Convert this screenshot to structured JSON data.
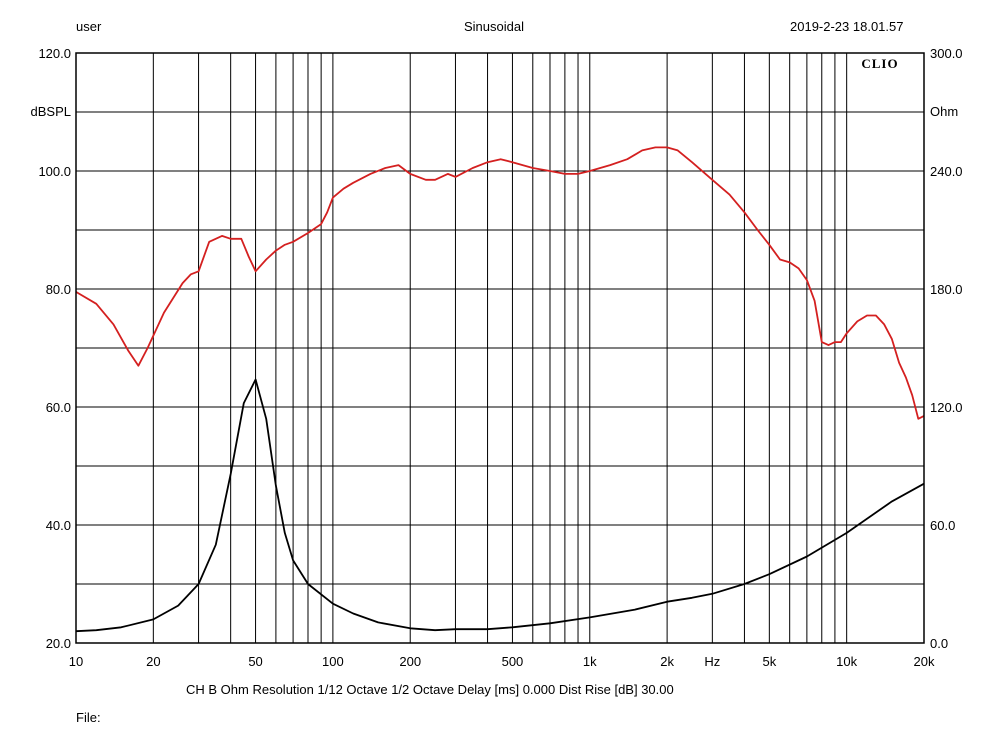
{
  "header": {
    "user": "user",
    "mode": "Sinusoidal",
    "timestamp": "2019-2-23 18.01.57"
  },
  "footer": {
    "settings": "CH B   Ohm   Resolution 1/12 Octave   1/2 Octave   Delay [ms] 0.000   Dist Rise [dB] 30.00",
    "file_label": "File:"
  },
  "chart_data": {
    "type": "line",
    "logo": "CLIO",
    "x_scale": "log",
    "xlim": [
      10,
      20000
    ],
    "x_ticks": [
      {
        "v": 10,
        "label": "10"
      },
      {
        "v": 20,
        "label": "20"
      },
      {
        "v": 50,
        "label": "50"
      },
      {
        "v": 100,
        "label": "100"
      },
      {
        "v": 200,
        "label": "200"
      },
      {
        "v": 500,
        "label": "500"
      },
      {
        "v": 1000,
        "label": "1k"
      },
      {
        "v": 2000,
        "label": "2k"
      },
      {
        "v": 5000,
        "label": "5k"
      },
      {
        "v": 10000,
        "label": "10k"
      },
      {
        "v": 20000,
        "label": "20k"
      }
    ],
    "x_unit": "Hz",
    "x_unit_at": 3000,
    "y_left": {
      "label": "dBSPL",
      "ylim": [
        20,
        120
      ],
      "ticks": [
        {
          "v": 20,
          "label": "20.0"
        },
        {
          "v": 40,
          "label": "40.0"
        },
        {
          "v": 60,
          "label": "60.0"
        },
        {
          "v": 80,
          "label": "80.0"
        },
        {
          "v": 100,
          "label": "100.0"
        },
        {
          "v": 120,
          "label": "120.0"
        }
      ]
    },
    "y_right": {
      "label": "Ohm",
      "ylim": [
        0,
        300
      ],
      "ticks": [
        {
          "v": 0,
          "label": "0.0"
        },
        {
          "v": 60,
          "label": "60.0"
        },
        {
          "v": 120,
          "label": "120.0"
        },
        {
          "v": 180,
          "label": "180.0"
        },
        {
          "v": 240,
          "label": "240.0"
        },
        {
          "v": 300,
          "label": "300.0"
        }
      ]
    },
    "grid": true,
    "series": [
      {
        "color": "#d42020",
        "axis": "left",
        "x": [
          10,
          12,
          14,
          16,
          17.5,
          19,
          22,
          26,
          28,
          30,
          33,
          37,
          40,
          44,
          47,
          50,
          55,
          60,
          65,
          70,
          80,
          90,
          95,
          100,
          110,
          120,
          140,
          160,
          180,
          200,
          230,
          250,
          280,
          300,
          350,
          400,
          450,
          500,
          600,
          700,
          800,
          900,
          1000,
          1200,
          1400,
          1600,
          1800,
          2000,
          2200,
          2500,
          3000,
          3500,
          4000,
          4500,
          5000,
          5500,
          6000,
          6500,
          7000,
          7500,
          8000,
          8500,
          9000,
          9500,
          10000,
          11000,
          12000,
          13000,
          14000,
          15000,
          16000,
          17000,
          18000,
          19000,
          20000
        ],
        "y": [
          79.5,
          77.5,
          74,
          69.5,
          67,
          70,
          76,
          81,
          82.5,
          83,
          88,
          89,
          88.5,
          88.5,
          85.5,
          83,
          85,
          86.5,
          87.5,
          88,
          89.5,
          91,
          93,
          95.5,
          97,
          98,
          99.5,
          100.5,
          101,
          99.5,
          98.5,
          98.5,
          99.5,
          99,
          100.5,
          101.5,
          102,
          101.5,
          100.5,
          100,
          99.5,
          99.5,
          100,
          101,
          102,
          103.5,
          104,
          104,
          103.5,
          101.5,
          98.5,
          96,
          93,
          90,
          87.5,
          85,
          84.5,
          83.5,
          81.5,
          78,
          71,
          70.5,
          71,
          71,
          72.5,
          74.5,
          75.5,
          75.5,
          74,
          71.5,
          67.5,
          65,
          62,
          58,
          58.5
        ]
      },
      {
        "color": "#000000",
        "axis": "right",
        "x": [
          10,
          12,
          15,
          20,
          25,
          30,
          35,
          40,
          45,
          50,
          55,
          60,
          65,
          70,
          80,
          100,
          120,
          150,
          200,
          250,
          300,
          400,
          500,
          700,
          1000,
          1500,
          2000,
          2500,
          3000,
          4000,
          5000,
          7000,
          10000,
          15000,
          20000
        ],
        "y": [
          6,
          6.5,
          8,
          12,
          19,
          30,
          50,
          86,
          122,
          134,
          114,
          80,
          56,
          42,
          30,
          20,
          15,
          10.5,
          7.5,
          6.5,
          7,
          7,
          8,
          10,
          13,
          17,
          21,
          23,
          25,
          30,
          35,
          44,
          56,
          72,
          81
        ]
      }
    ]
  }
}
